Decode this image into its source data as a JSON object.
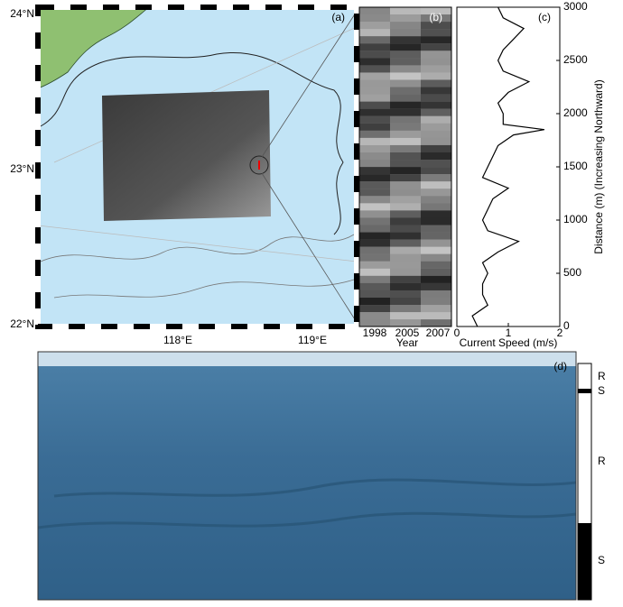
{
  "panel_a": {
    "label": "(a)",
    "lat_labels": [
      "24°N",
      "23°N",
      "22°N"
    ],
    "lon_labels": [
      "118°E",
      "119°E"
    ]
  },
  "panel_b": {
    "label": "(b)",
    "years": [
      "1998",
      "2005",
      "2007"
    ],
    "xlabel": "Year"
  },
  "chart_data": {
    "type": "line",
    "label": "(c)",
    "orientation": "vertical",
    "xlabel": "Distance (m) (Increasing Northward)",
    "ylabel": "Current Speed (m/s)",
    "x": [
      0,
      100,
      200,
      300,
      400,
      500,
      600,
      700,
      800,
      900,
      1000,
      1100,
      1200,
      1300,
      1400,
      1500,
      1600,
      1700,
      1800,
      1850,
      1900,
      2000,
      2100,
      2200,
      2300,
      2400,
      2500,
      2600,
      2700,
      2800,
      2900,
      3000
    ],
    "values": [
      0.4,
      0.3,
      0.6,
      0.5,
      0.5,
      0.6,
      0.5,
      0.8,
      1.2,
      0.6,
      0.5,
      0.6,
      0.7,
      1.0,
      0.5,
      0.6,
      0.7,
      0.8,
      1.1,
      1.7,
      0.9,
      0.9,
      0.8,
      1.0,
      1.4,
      0.9,
      0.8,
      0.9,
      1.1,
      1.3,
      0.9,
      0.8
    ],
    "color": "#000000",
    "xlim": [
      0,
      3000
    ],
    "xticks": [
      0,
      500,
      1000,
      1500,
      2000,
      2500,
      3000
    ],
    "ylim": [
      0,
      2
    ],
    "yticks": [
      0,
      1,
      2
    ]
  },
  "panel_d": {
    "label": "(d)",
    "bands": [
      "R",
      "S",
      "R",
      "S"
    ]
  }
}
